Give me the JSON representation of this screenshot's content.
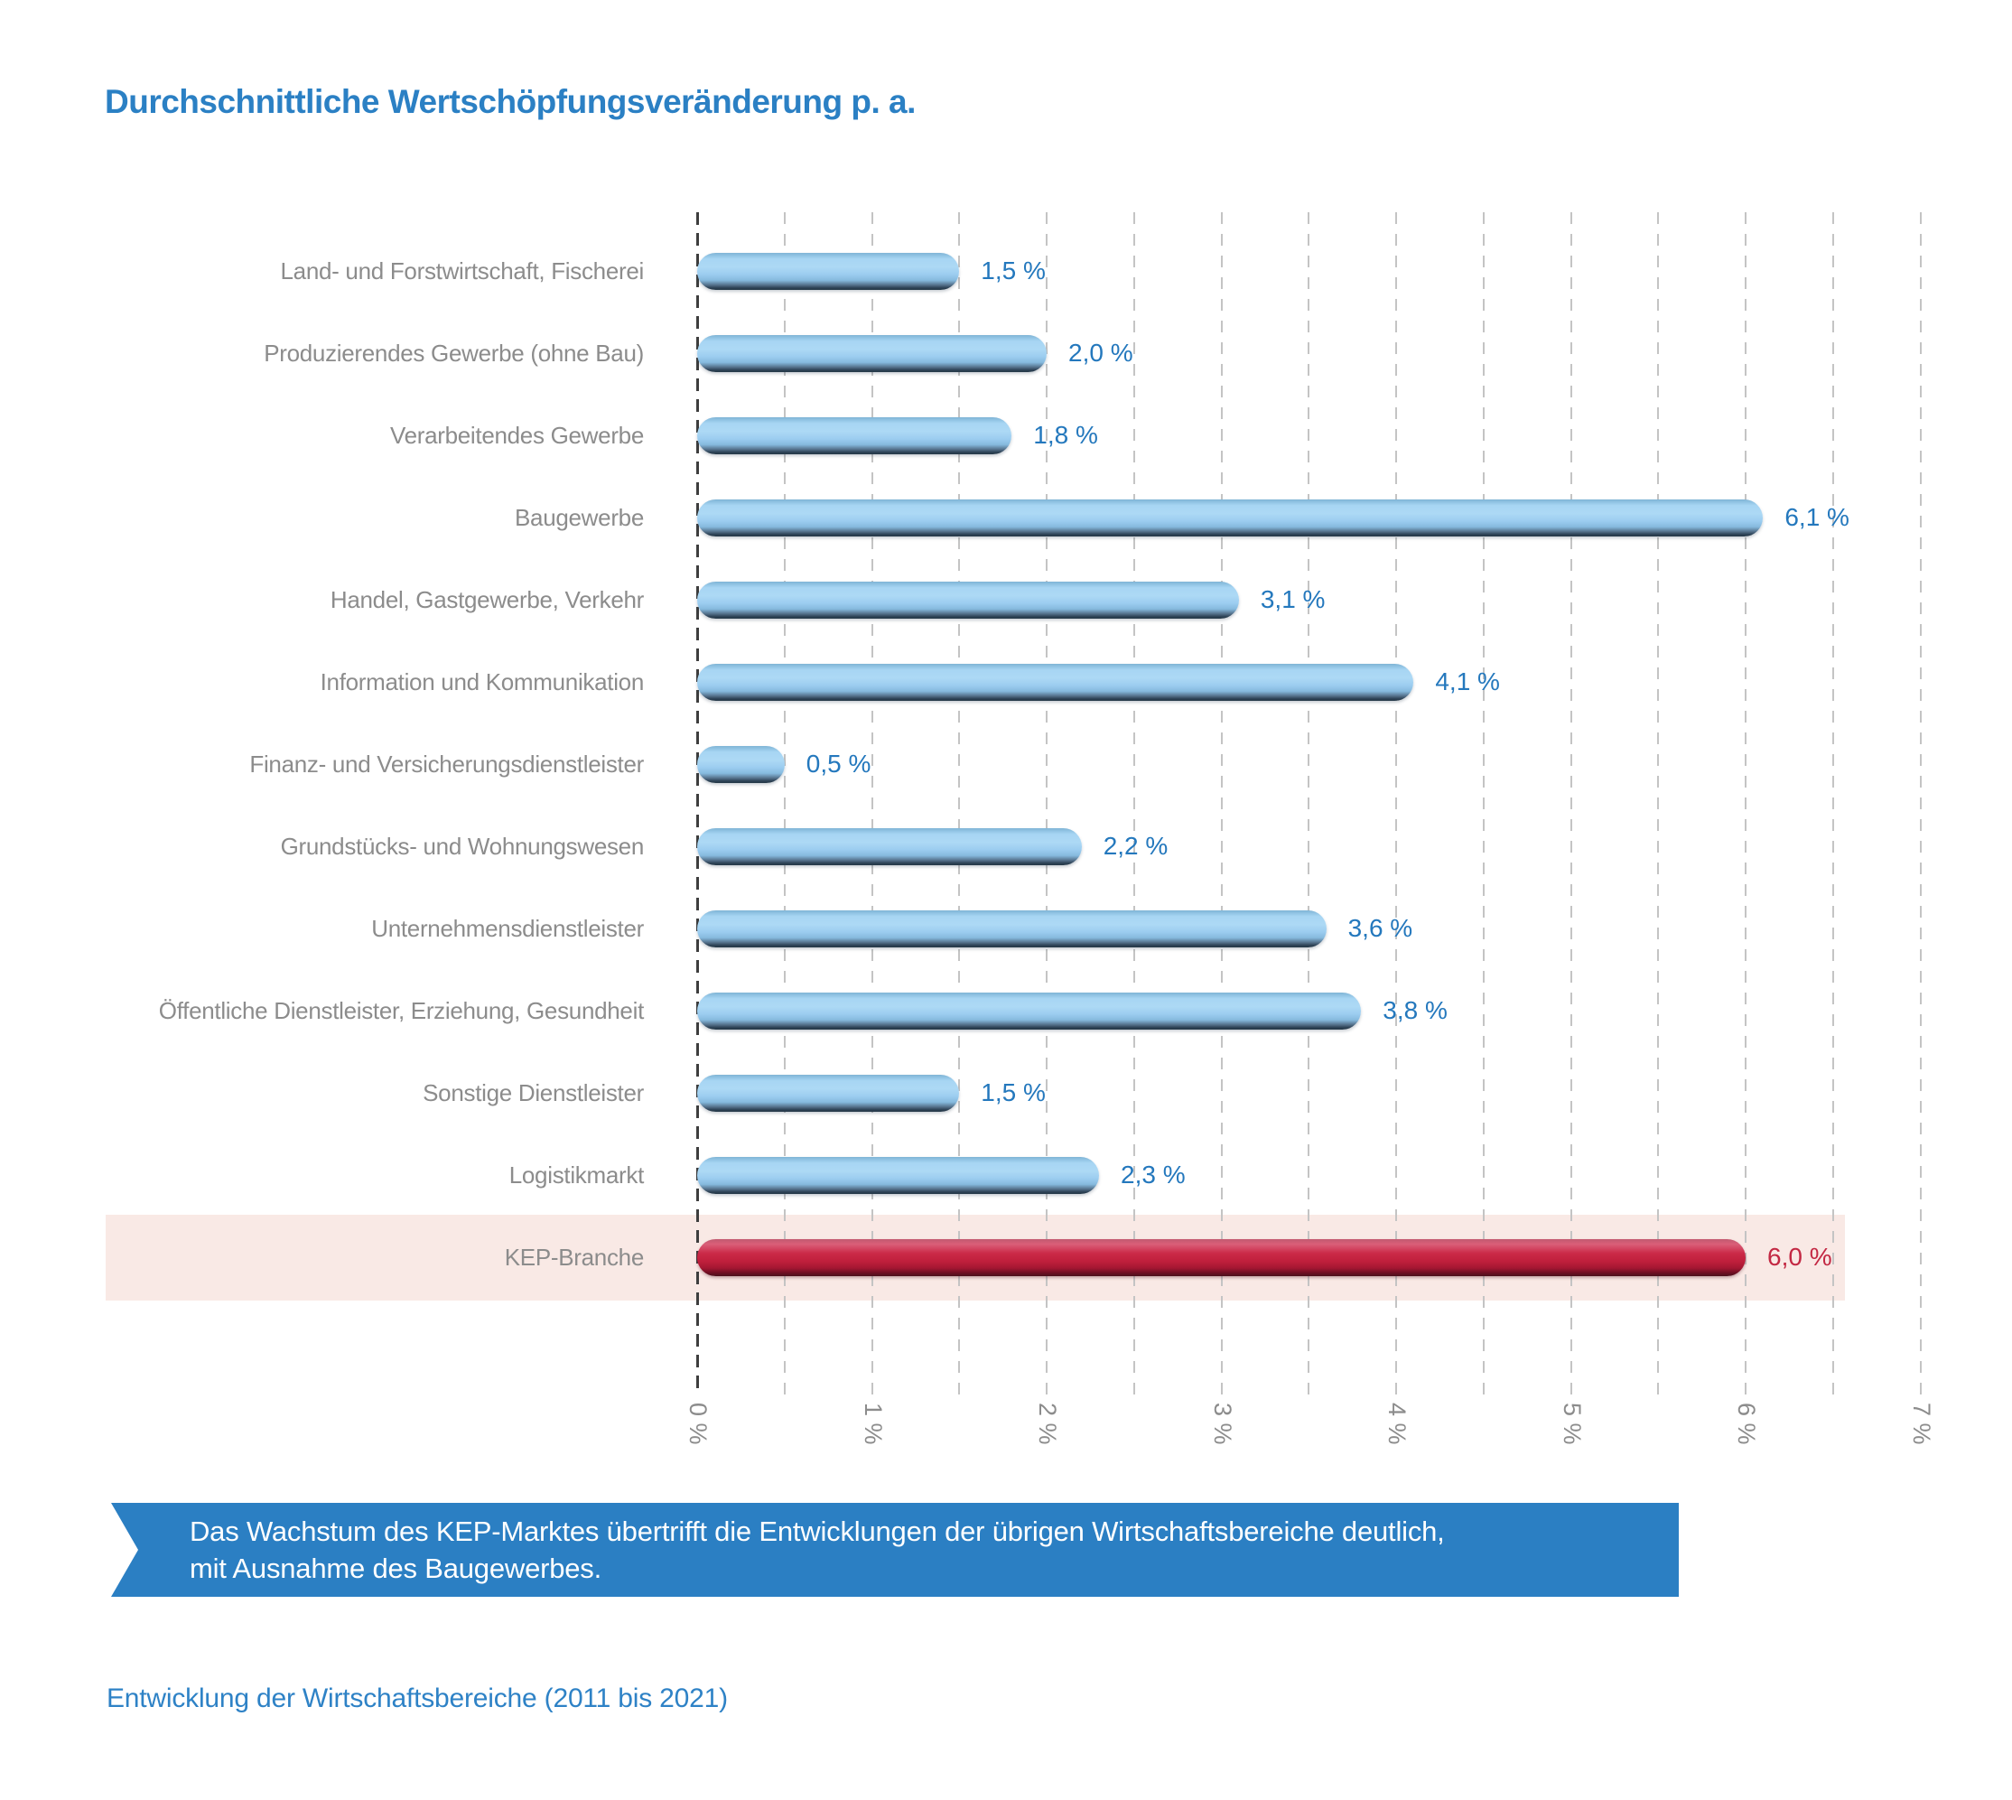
{
  "title": "Durchschnittliche Wertschöpfungsveränderung p. a.",
  "chart_data": {
    "type": "bar",
    "orientation": "horizontal",
    "title": "Durchschnittliche Wertschöpfungsveränderung p. a.",
    "categories": [
      "Land- und Forstwirtschaft, Fischerei",
      "Produzierendes Gewerbe (ohne Bau)",
      "Verarbeitendes Gewerbe",
      "Baugewerbe",
      "Handel, Gastgewerbe, Verkehr",
      "Information und Kommunikation",
      "Finanz- und Versicherungsdienstleister",
      "Grundstücks- und Wohnungswesen",
      "Unternehmensdienstleister",
      "Öffentliche Dienstleister, Erziehung, Gesundheit",
      "Sonstige Dienstleister",
      "Logistikmarkt",
      "KEP-Branche"
    ],
    "values": [
      1.5,
      2.0,
      1.8,
      6.1,
      3.1,
      4.1,
      0.5,
      2.2,
      3.6,
      3.8,
      1.5,
      2.3,
      6.0
    ],
    "value_labels": [
      "1,5 %",
      "2,0 %",
      "1,8 %",
      "6,1 %",
      "3,1 %",
      "4,1 %",
      "0,5 %",
      "2,2 %",
      "3,6 %",
      "3,8 %",
      "1,5 %",
      "2,3 %",
      "6,0 %"
    ],
    "highlight_index": 12,
    "x_ticks": [
      "0 %",
      "1 %",
      "2 %",
      "3 %",
      "4 %",
      "5 %",
      "6 %",
      "7 %"
    ],
    "xlim": [
      0,
      7
    ],
    "grid_step": 0.5,
    "grid": true,
    "legend": "none"
  },
  "colors": {
    "title_blue": "#2b80c4",
    "value_blue": "#2478bd",
    "kep_value_red": "#c32843",
    "bar_blue": "#9ccdf0",
    "bar_red": "#c01f3c",
    "highlight_row_bg": "#f9e9e5",
    "label_gray": "#8c8c8c",
    "grid_light": "#c4c4c4",
    "grid_zero": "#3e3e3e",
    "banner_bg": "#2b7fc3",
    "banner_text": "#ffffff"
  },
  "callout": {
    "line1": "Das Wachstum des KEP-Marktes übertrifft die Entwicklungen der übrigen Wirtschaftsbereiche deutlich,",
    "line2": "mit Ausnahme des Baugewerbes."
  },
  "caption": "Entwicklung der Wirtschaftsbereiche (2011 bis 2021)"
}
